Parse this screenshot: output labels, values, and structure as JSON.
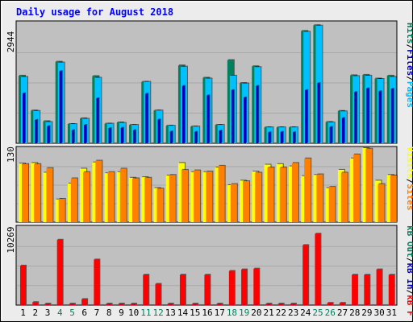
{
  "title": "Daily usage for August 2018",
  "colors": {
    "frame_bg": "#ECECEC",
    "plot_bg": "#C0C0C0",
    "title": "#0000FF",
    "hits": "#00805C",
    "files": "#0000C0",
    "pages": "#00C0FF",
    "visits": "#FFFF00",
    "sites": "#FF8000",
    "kb_in": "#0000C0",
    "kb_out": "#00805C",
    "kb_f": "#FF0000",
    "weekend_label": "#00805C",
    "weekday_label": "#000000"
  },
  "panels": {
    "top": {
      "max_label": "2944",
      "legend": [
        "Hits",
        "/",
        "Files",
        "/",
        "Pages"
      ],
      "legend_colors": [
        "#00805C",
        "#000000",
        "#0000C0",
        "#000000",
        "#00C0FF"
      ]
    },
    "middle": {
      "max_label": "130",
      "legend": [
        "Visits",
        "/",
        "Sites"
      ],
      "legend_colors": [
        "#FFFF00",
        "#000000",
        "#FF8000"
      ]
    },
    "bottom": {
      "max_label": "10269",
      "legend": [
        "kB Out",
        "/",
        "kB In",
        "/",
        "kB F"
      ],
      "legend_colors": [
        "#00805C",
        "#000000",
        "#0000C0",
        "#000000",
        "#FF0000"
      ]
    }
  },
  "chart_data": {
    "type": "bar",
    "title": "Daily usage for August 2018",
    "categories": [
      "1",
      "2",
      "3",
      "4",
      "5",
      "6",
      "7",
      "8",
      "9",
      "10",
      "11",
      "12",
      "13",
      "14",
      "15",
      "16",
      "17",
      "18",
      "19",
      "20",
      "21",
      "22",
      "23",
      "24",
      "25",
      "26",
      "27",
      "28",
      "29",
      "30",
      "31"
    ],
    "weekend_days": [
      "4",
      "5",
      "11",
      "12",
      "18",
      "19",
      "25",
      "26"
    ],
    "panels": [
      {
        "name": "hits-files-pages",
        "ylim": [
          0,
          2944
        ],
        "y_max_label": "2944",
        "series": [
          {
            "name": "Hits",
            "color": "#00805C",
            "values": [
              1650,
              800,
              540,
              1990,
              470,
              610,
              1640,
              480,
              510,
              450,
              1500,
              800,
              430,
              1900,
              410,
              1600,
              450,
              2030,
              1470,
              1880,
              390,
              390,
              390,
              2740,
              2880,
              520,
              790,
              1660,
              1670,
              1580,
              1650
            ]
          },
          {
            "name": "Files",
            "color": "#0000C0",
            "values": [
              1220,
              570,
              420,
              1760,
              320,
              450,
              1100,
              370,
              380,
              320,
              1210,
              580,
              290,
              1400,
              280,
              1170,
              310,
              1300,
              1120,
              1400,
              270,
              280,
              270,
              1300,
              1470,
              400,
              620,
              1250,
              1340,
              1270,
              1330
            ]
          },
          {
            "name": "Pages",
            "color": "#00C0FF",
            "values": [
              1620,
              790,
              520,
              1970,
              470,
              600,
              1600,
              480,
              500,
              450,
              1500,
              800,
              430,
              1870,
              410,
              1580,
              450,
              1650,
              1460,
              1860,
              390,
              390,
              390,
              2720,
              2870,
              510,
              780,
              1640,
              1650,
              1570,
              1620
            ]
          }
        ]
      },
      {
        "name": "visits-sites",
        "ylim": [
          0,
          130
        ],
        "y_max_label": "130",
        "series": [
          {
            "name": "Visits",
            "color": "#FFFF00",
            "values": [
              103,
              104,
              87,
              40,
              68,
              94,
              105,
              86,
              88,
              78,
              79,
              60,
              82,
              104,
              88,
              88,
              96,
              65,
              73,
              89,
              101,
              102,
              98,
              81,
              83,
              60,
              92,
              112,
              130,
              73,
              83
            ]
          },
          {
            "name": "Sites",
            "color": "#FF8000",
            "values": [
              102,
              102,
              95,
              41,
              77,
              88,
              108,
              88,
              94,
              77,
              78,
              59,
              83,
              92,
              91,
              89,
              99,
              67,
              72,
              87,
              96,
              96,
              104,
              112,
              84,
              62,
              87,
              119,
              129,
              67,
              82
            ]
          }
        ]
      },
      {
        "name": "kb",
        "ylim": [
          0,
          10269
        ],
        "y_max_label": "10269",
        "series": [
          {
            "name": "kB F",
            "color": "#FF0000",
            "values": [
              5200,
              400,
              200,
              8600,
              200,
              800,
              6000,
              200,
              200,
              200,
              4000,
              2800,
              200,
              4000,
              200,
              4000,
              200,
              4500,
              4700,
              4800,
              200,
              200,
              200,
              7900,
              9400,
              300,
              300,
              4000,
              4000,
              4700,
              4000
            ]
          },
          {
            "name": "kB In",
            "color": "#0000C0",
            "values": [
              30,
              30,
              30,
              30,
              30,
              30,
              30,
              30,
              30,
              30,
              30,
              30,
              30,
              30,
              30,
              30,
              30,
              30,
              30,
              30,
              30,
              30,
              30,
              30,
              30,
              30,
              30,
              30,
              30,
              30,
              30
            ]
          },
          {
            "name": "kB Out",
            "color": "#00805C",
            "values": [
              0,
              0,
              0,
              0,
              0,
              0,
              0,
              0,
              0,
              0,
              0,
              0,
              0,
              0,
              0,
              0,
              0,
              0,
              0,
              0,
              0,
              0,
              0,
              0,
              0,
              0,
              0,
              0,
              0,
              0,
              0
            ]
          }
        ]
      }
    ]
  }
}
